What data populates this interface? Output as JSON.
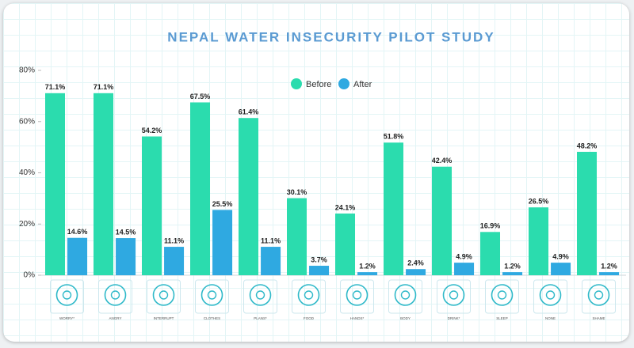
{
  "chart_data": {
    "type": "bar",
    "title": "NEPAL WATER INSECURITY PILOT STUDY",
    "categories": [
      "WORRY*",
      "ANGRY",
      "INTERRUPT",
      "CLOTHES",
      "PLANS*",
      "FOOD",
      "HANDS*",
      "BODY",
      "DRINK*",
      "SLEEP",
      "NONE",
      "SHAME"
    ],
    "series": [
      {
        "name": "Before",
        "color": "#2bdcae",
        "values": [
          71.1,
          71.1,
          54.2,
          67.5,
          61.4,
          30.1,
          24.1,
          51.8,
          42.4,
          16.9,
          26.5,
          48.2
        ],
        "value_labels": [
          "71.1%",
          "71.1%",
          "54.2%",
          "67.5%",
          "61.4%",
          "30.1%",
          "24.1%",
          "51.8%",
          "42.4%",
          "16.9%",
          "26.5%",
          "48.2%"
        ]
      },
      {
        "name": "After",
        "color": "#2fa9e1",
        "values": [
          14.6,
          14.5,
          11.1,
          25.5,
          11.1,
          3.7,
          1.2,
          2.4,
          4.9,
          1.2,
          4.9,
          1.2
        ],
        "value_labels": [
          "14.6%",
          "14.5%",
          "11.1%",
          "25.5%",
          "11.1%",
          "3.7%",
          "1.2%",
          "2.4%",
          "4.9%",
          "1.2%",
          "4.9%",
          "1.2%"
        ]
      }
    ],
    "ylim": [
      0,
      80
    ],
    "yticks": [
      {
        "value": 0,
        "label": "0%"
      },
      {
        "value": 20,
        "label": "20%"
      },
      {
        "value": 40,
        "label": "40%"
      },
      {
        "value": 60,
        "label": "60%"
      },
      {
        "value": 80,
        "label": "80%"
      }
    ],
    "legend": "top"
  }
}
